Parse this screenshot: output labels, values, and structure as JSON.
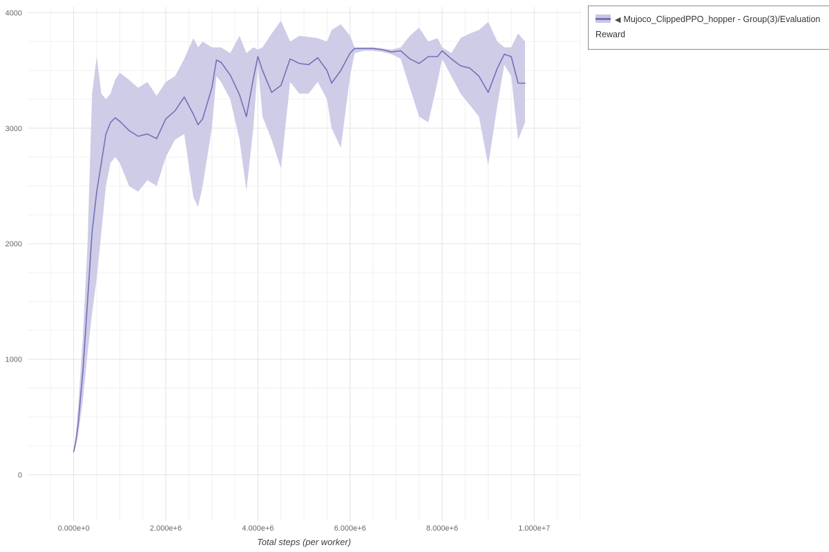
{
  "legend": {
    "marker": "◀",
    "label": "Mujoco_ClippedPPO_hopper - Group(3)/Evaluation Reward"
  },
  "chart_data": {
    "type": "line",
    "title": "",
    "xlabel": "Total steps (per worker)",
    "ylabel": "",
    "xlim": [
      -1000000,
      11000000
    ],
    "ylim": [
      -400,
      4050
    ],
    "grid": true,
    "legend_position": "right-top",
    "line_color": "#7370b5",
    "band_color": "#c9c6e4",
    "grid_major_color": "#e2e2e2",
    "grid_minor_color": "#f0f0f0",
    "tick_color": "#666666",
    "x_tick_values": [
      0,
      2000000,
      4000000,
      6000000,
      8000000,
      10000000
    ],
    "x_tick_labels": [
      "0.000e+0",
      "2.000e+6",
      "4.000e+6",
      "6.000e+6",
      "8.000e+6",
      "1.000e+7"
    ],
    "y_tick_values": [
      0,
      1000,
      2000,
      3000,
      4000
    ],
    "y_tick_labels": [
      "0",
      "1000",
      "2000",
      "3000",
      "4000"
    ],
    "series": [
      {
        "name": "Mujoco_ClippedPPO_hopper - Group(3)/Evaluation Reward",
        "x": [
          0,
          50000,
          100000,
          200000,
          300000,
          400000,
          500000,
          600000,
          700000,
          800000,
          900000,
          1000000,
          1200000,
          1400000,
          1600000,
          1800000,
          2000000,
          2200000,
          2400000,
          2600000,
          2700000,
          2800000,
          3000000,
          3100000,
          3200000,
          3400000,
          3600000,
          3750000,
          3900000,
          4000000,
          4100000,
          4300000,
          4500000,
          4700000,
          4900000,
          5100000,
          5300000,
          5500000,
          5600000,
          5800000,
          6000000,
          6100000,
          6300000,
          6500000,
          6700000,
          6900000,
          7100000,
          7300000,
          7500000,
          7700000,
          7900000,
          8000000,
          8200000,
          8400000,
          8600000,
          8800000,
          9000000,
          9200000,
          9350000,
          9500000,
          9650000,
          9800000
        ],
        "mean": [
          200,
          300,
          450,
          900,
          1500,
          2100,
          2450,
          2700,
          2950,
          3050,
          3090,
          3060,
          2980,
          2930,
          2950,
          2910,
          3080,
          3150,
          3270,
          3120,
          3030,
          3080,
          3350,
          3590,
          3570,
          3460,
          3290,
          3100,
          3430,
          3620,
          3500,
          3310,
          3370,
          3600,
          3560,
          3550,
          3610,
          3500,
          3390,
          3500,
          3650,
          3690,
          3690,
          3690,
          3680,
          3660,
          3670,
          3600,
          3560,
          3620,
          3620,
          3670,
          3600,
          3540,
          3520,
          3450,
          3310,
          3520,
          3640,
          3620,
          3390,
          3390
        ],
        "upper": [
          210,
          350,
          600,
          1200,
          2000,
          3300,
          3620,
          3300,
          3250,
          3300,
          3420,
          3480,
          3420,
          3350,
          3400,
          3280,
          3400,
          3450,
          3600,
          3780,
          3700,
          3750,
          3700,
          3700,
          3700,
          3650,
          3800,
          3650,
          3700,
          3680,
          3700,
          3820,
          3930,
          3750,
          3800,
          3790,
          3780,
          3750,
          3850,
          3900,
          3800,
          3700,
          3700,
          3700,
          3690,
          3680,
          3700,
          3800,
          3870,
          3750,
          3780,
          3700,
          3650,
          3780,
          3820,
          3850,
          3920,
          3750,
          3700,
          3700,
          3820,
          3750
        ],
        "lower": [
          190,
          250,
          350,
          650,
          1050,
          1400,
          1700,
          2100,
          2500,
          2700,
          2750,
          2700,
          2500,
          2450,
          2550,
          2500,
          2750,
          2900,
          2950,
          2400,
          2320,
          2500,
          3000,
          3450,
          3400,
          3250,
          2900,
          2460,
          3000,
          3550,
          3100,
          2900,
          2650,
          3400,
          3300,
          3300,
          3400,
          3250,
          3000,
          2830,
          3450,
          3650,
          3670,
          3670,
          3660,
          3640,
          3600,
          3350,
          3100,
          3050,
          3400,
          3600,
          3450,
          3300,
          3200,
          3100,
          2680,
          3200,
          3550,
          3450,
          2900,
          3050
        ]
      }
    ]
  }
}
